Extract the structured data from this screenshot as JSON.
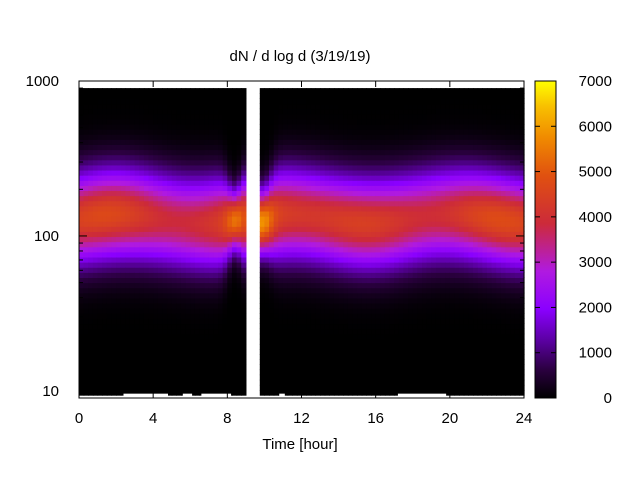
{
  "chart_data": {
    "type": "heatmap",
    "title": "dN / d log d (3/19/19)",
    "xlabel": "Time [hour]",
    "ylabel": "",
    "x_range": [
      0,
      24
    ],
    "x_ticks": [
      "0",
      "4",
      "8",
      "12",
      "16",
      "20",
      "24"
    ],
    "y_range": [
      9,
      1000
    ],
    "y_scale": "log",
    "y_ticks": [
      "10",
      "100",
      "1000"
    ],
    "colorbar": {
      "range": [
        0,
        7000
      ],
      "ticks": [
        "0",
        "1000",
        "2000",
        "3000",
        "4000",
        "5000",
        "6000",
        "7000"
      ],
      "palette": [
        "#000000",
        "#2b0040",
        "#5a00a0",
        "#8a00ff",
        "#b01ae0",
        "#cc2a3a",
        "#e05010",
        "#f08a00",
        "#f8c000",
        "#ffff00"
      ]
    },
    "data_gap_hours": [
      9.1,
      9.7
    ],
    "mode_peak_diameter": 130,
    "mode_peak_value_typical": 4300,
    "mode_peak_value_max": 5600,
    "mode_peak_max_time_hour": 9.9
  }
}
